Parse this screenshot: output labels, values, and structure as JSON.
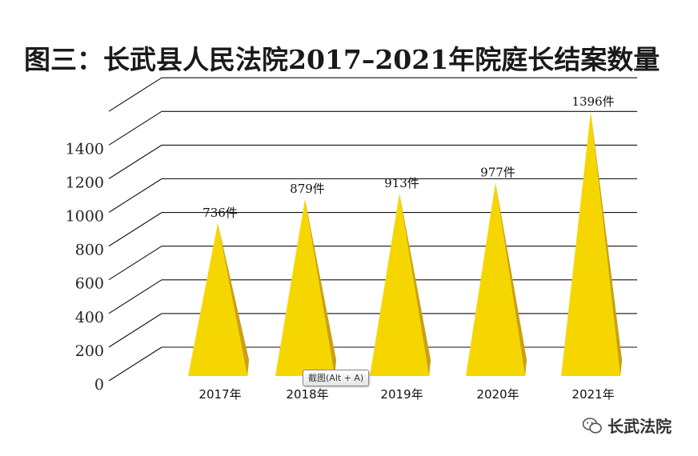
{
  "chart_data": {
    "type": "bar",
    "title": "图三：长武县人民法院2017–2021年院庭长结案数量",
    "categories": [
      "2017年",
      "2018年",
      "2019年",
      "2020年",
      "2021年"
    ],
    "values": [
      736,
      879,
      913,
      977,
      1396
    ],
    "value_labels": [
      "736件",
      "879件",
      "913件",
      "977件",
      "1396件"
    ],
    "yticks": [
      "0",
      "200",
      "400",
      "600",
      "800",
      "1000",
      "1200",
      "1400"
    ],
    "ylim": [
      0,
      1600
    ],
    "grid": true,
    "shape": "pyramid",
    "colors": {
      "front": "#f6d600",
      "side": "#c9a214",
      "grid": "#111111"
    }
  },
  "overlay": {
    "tooltip": "截图(Alt + A)",
    "watermark": "长武法院"
  }
}
